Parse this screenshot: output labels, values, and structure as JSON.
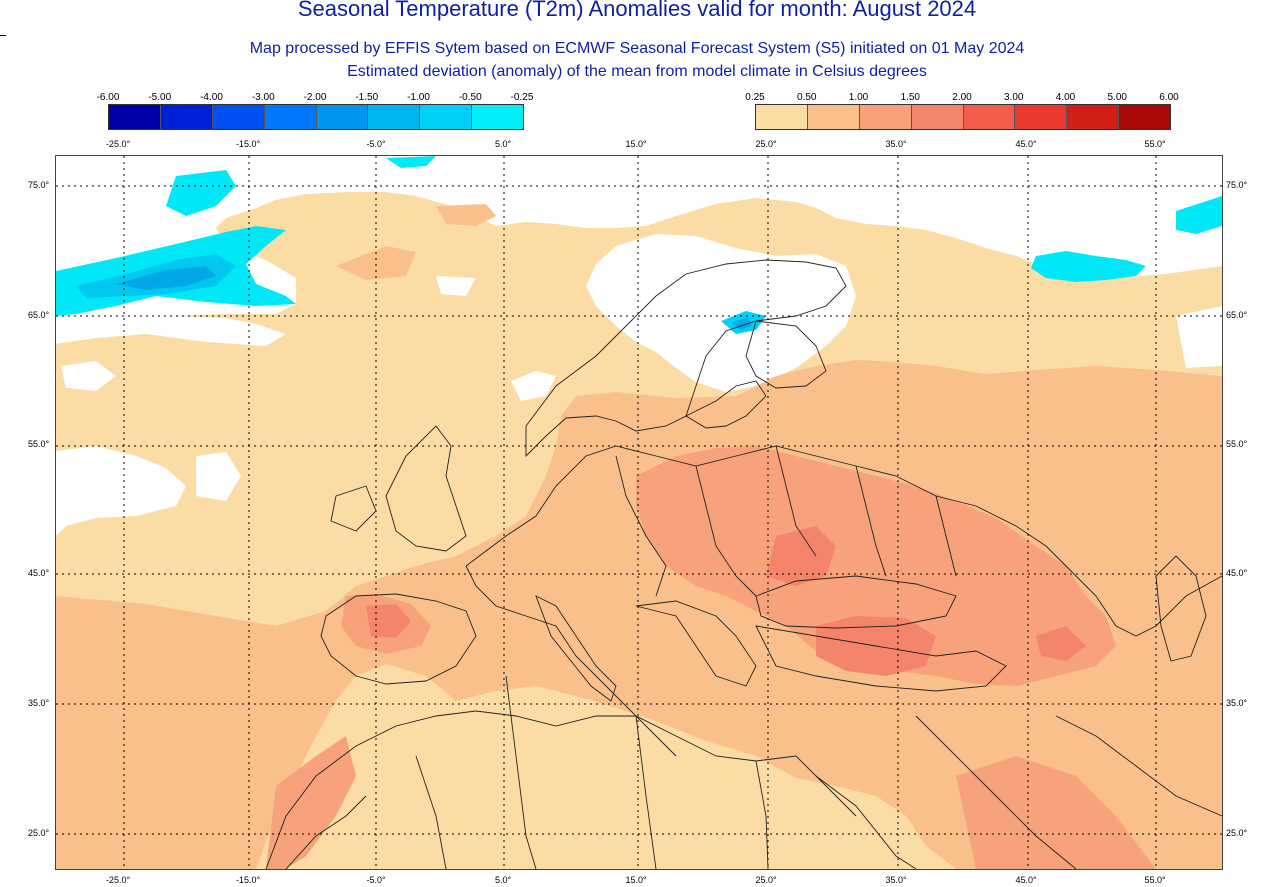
{
  "title": "Seasonal Temperature (T2m) Anomalies valid for month: August 2024",
  "subtitle1": "Map processed by EFFIS Sytem based on ECMWF Seasonal Forecast System (S5) initiated on 01 May 2024",
  "subtitle2": "Estimated deviation (anomaly) of the mean from model climate in Celsius degrees",
  "legend_negative": {
    "labels": [
      "-6.00",
      "-5.00",
      "-4.00",
      "-3.00",
      "-2.00",
      "-1.50",
      "-1.00",
      "-0.50",
      "-0.25"
    ],
    "colors": [
      "#0000a8",
      "#0020d8",
      "#0050f0",
      "#0078f8",
      "#0096f0",
      "#00b4f0",
      "#00d0f8",
      "#00eef8"
    ]
  },
  "legend_positive": {
    "labels": [
      "0.25",
      "0.50",
      "1.00",
      "1.50",
      "2.00",
      "3.00",
      "4.00",
      "5.00",
      "6.00"
    ],
    "colors": [
      "#fbdca5",
      "#f9c08c",
      "#f7a27a",
      "#f5856a",
      "#f35e4b",
      "#ea3a30",
      "#d01f16",
      "#a80808"
    ]
  },
  "lon_ticks": [
    "-25.0°",
    "-15.0°",
    "-5.0°",
    "5.0°",
    "15.0°",
    "25.0°",
    "35.0°",
    "45.0°",
    "55.0°"
  ],
  "lat_ticks": [
    "75.0°",
    "65.0°",
    "55.0°",
    "45.0°",
    "35.0°",
    "25.0°"
  ],
  "colors": {
    "title": "#0d1fa6",
    "no_anomaly": "#ffffff",
    "background_anomaly": "#fbdca5",
    "grid": "#000000",
    "coast": "#222222"
  }
}
